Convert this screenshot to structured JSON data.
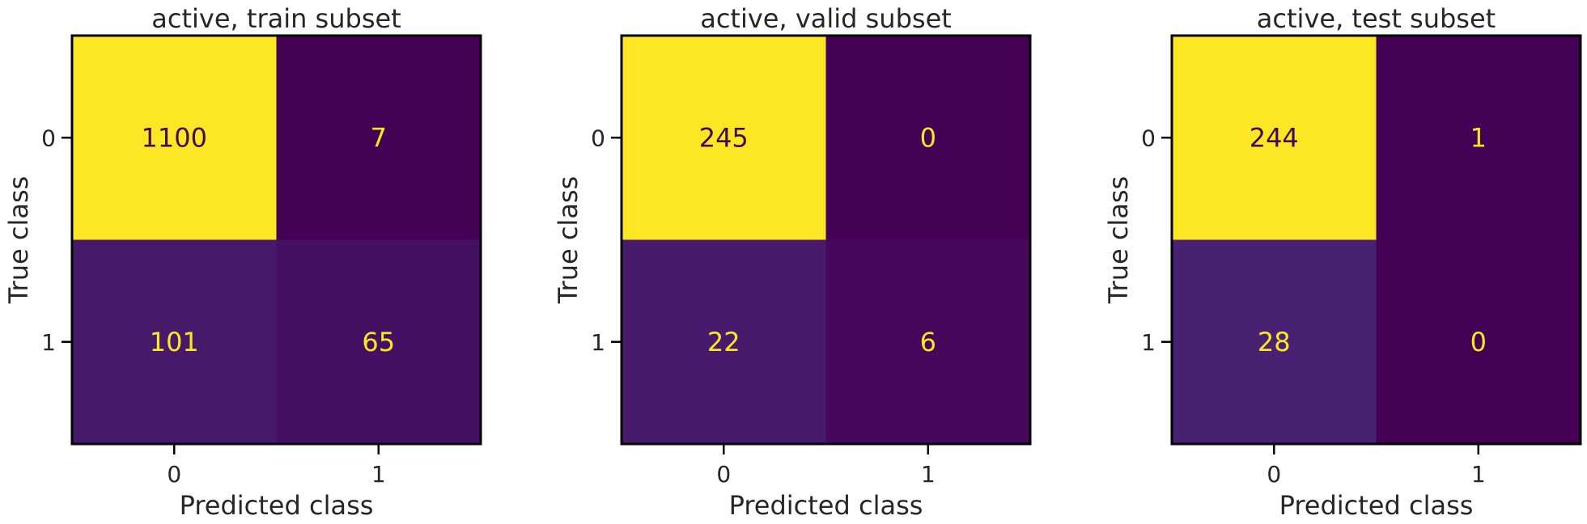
{
  "chart_data": [
    {
      "type": "heatmap",
      "title": "active, train subset",
      "xlabel": "Predicted class",
      "ylabel": "True class",
      "x_ticks": [
        "0",
        "1"
      ],
      "y_ticks": [
        "0",
        "1"
      ],
      "matrix": [
        [
          1100,
          7
        ],
        [
          101,
          65
        ]
      ],
      "colormap": "viridis",
      "grid": false
    },
    {
      "type": "heatmap",
      "title": "active, valid subset",
      "xlabel": "Predicted class",
      "ylabel": "True class",
      "x_ticks": [
        "0",
        "1"
      ],
      "y_ticks": [
        "0",
        "1"
      ],
      "matrix": [
        [
          245,
          0
        ],
        [
          22,
          6
        ]
      ],
      "colormap": "viridis",
      "grid": false
    },
    {
      "type": "heatmap",
      "title": "active, test subset",
      "xlabel": "Predicted class",
      "ylabel": "True class",
      "x_ticks": [
        "0",
        "1"
      ],
      "y_ticks": [
        "0",
        "1"
      ],
      "matrix": [
        [
          244,
          1
        ],
        [
          28,
          0
        ]
      ],
      "colormap": "viridis",
      "grid": false
    }
  ],
  "colors": {
    "dark_text": "#3f0d53",
    "light_text": "#fde725",
    "axis": "#000000"
  }
}
